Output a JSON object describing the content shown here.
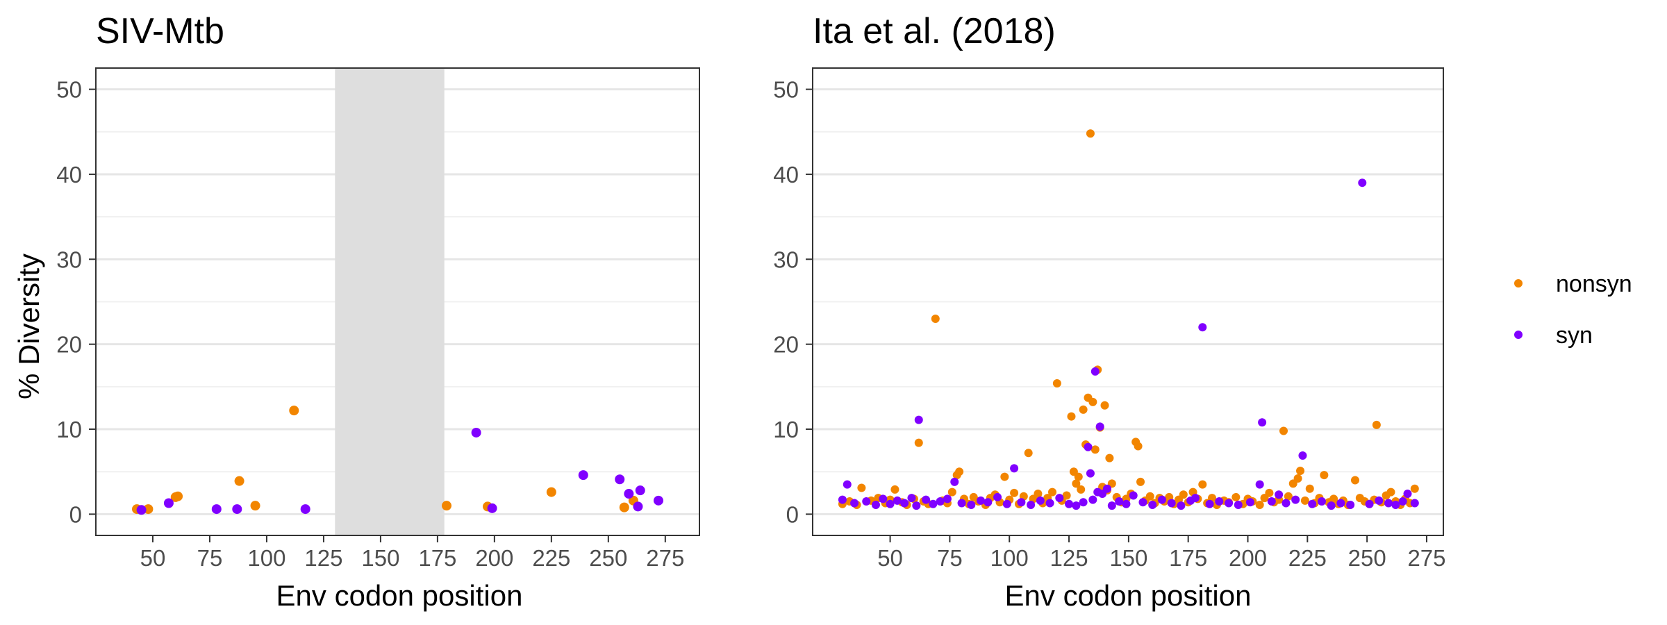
{
  "chart_data": [
    {
      "type": "scatter",
      "title": "SIV-Mtb",
      "xlabel": "Env codon position",
      "ylabel": "% Diversity",
      "xlim": [
        25,
        290
      ],
      "ylim": [
        -2.5,
        52.5
      ],
      "xticks": [
        50,
        75,
        100,
        125,
        150,
        175,
        200,
        225,
        250,
        275
      ],
      "yticks": [
        0,
        10,
        20,
        30,
        40,
        50
      ],
      "grid": true,
      "shaded_region": [
        130,
        178
      ],
      "series": [
        {
          "name": "nonsyn",
          "color": "#F28500",
          "points": [
            [
              43,
              0.6
            ],
            [
              48,
              0.6
            ],
            [
              60,
              2.0
            ],
            [
              61,
              2.1
            ],
            [
              88,
              3.9
            ],
            [
              95,
              1.0
            ],
            [
              112,
              12.2
            ],
            [
              179,
              1.0
            ],
            [
              197,
              0.9
            ],
            [
              225,
              2.6
            ],
            [
              257,
              0.8
            ],
            [
              261,
              1.6
            ]
          ]
        },
        {
          "name": "syn",
          "color": "#8000FF",
          "points": [
            [
              45,
              0.5
            ],
            [
              57,
              1.3
            ],
            [
              78,
              0.6
            ],
            [
              87,
              0.6
            ],
            [
              117,
              0.6
            ],
            [
              192,
              9.6
            ],
            [
              199,
              0.7
            ],
            [
              239,
              4.6
            ],
            [
              255,
              4.1
            ],
            [
              259,
              2.4
            ],
            [
              263,
              0.9
            ],
            [
              264,
              2.8
            ],
            [
              272,
              1.6
            ]
          ]
        }
      ]
    },
    {
      "type": "scatter",
      "title": "Ita et al. (2018)",
      "xlabel": "Env codon position",
      "ylabel": "",
      "xlim": [
        17.5,
        282
      ],
      "ylim": [
        -2.5,
        52.5
      ],
      "xticks": [
        50,
        75,
        100,
        125,
        150,
        175,
        200,
        225,
        250,
        275
      ],
      "yticks": [
        0,
        10,
        20,
        30,
        40,
        50
      ],
      "grid": true,
      "legend": "right",
      "series": [
        {
          "name": "nonsyn",
          "color": "#F28500",
          "points": [
            [
              30,
              1.2
            ],
            [
              33,
              1.5
            ],
            [
              36,
              1.1
            ],
            [
              38,
              3.1
            ],
            [
              42,
              1.6
            ],
            [
              45,
              1.9
            ],
            [
              48,
              1.3
            ],
            [
              50,
              1.7
            ],
            [
              52,
              2.9
            ],
            [
              55,
              1.4
            ],
            [
              57,
              1.1
            ],
            [
              60,
              1.8
            ],
            [
              62,
              8.4
            ],
            [
              64,
              1.5
            ],
            [
              66,
              1.2
            ],
            [
              69,
              23.0
            ],
            [
              72,
              1.6
            ],
            [
              74,
              1.3
            ],
            [
              76,
              2.6
            ],
            [
              78,
              4.6
            ],
            [
              79,
              5.0
            ],
            [
              81,
              1.8
            ],
            [
              83,
              1.2
            ],
            [
              85,
              2.0
            ],
            [
              87,
              1.5
            ],
            [
              90,
              1.1
            ],
            [
              92,
              1.9
            ],
            [
              94,
              2.3
            ],
            [
              96,
              1.4
            ],
            [
              98,
              4.4
            ],
            [
              100,
              1.7
            ],
            [
              102,
              2.5
            ],
            [
              104,
              1.2
            ],
            [
              106,
              2.1
            ],
            [
              108,
              7.2
            ],
            [
              110,
              1.8
            ],
            [
              112,
              2.4
            ],
            [
              114,
              1.3
            ],
            [
              116,
              1.9
            ],
            [
              118,
              2.6
            ],
            [
              120,
              15.4
            ],
            [
              122,
              1.6
            ],
            [
              124,
              2.2
            ],
            [
              126,
              11.5
            ],
            [
              127,
              5.0
            ],
            [
              128,
              3.6
            ],
            [
              129,
              4.4
            ],
            [
              130,
              2.9
            ],
            [
              131,
              12.3
            ],
            [
              132,
              8.2
            ],
            [
              133,
              13.7
            ],
            [
              134,
              44.8
            ],
            [
              135,
              13.2
            ],
            [
              136,
              7.6
            ],
            [
              137,
              17.0
            ],
            [
              138,
              10.2
            ],
            [
              139,
              3.2
            ],
            [
              140,
              12.8
            ],
            [
              141,
              2.8
            ],
            [
              142,
              6.6
            ],
            [
              143,
              3.6
            ],
            [
              145,
              2.0
            ],
            [
              147,
              1.4
            ],
            [
              149,
              1.8
            ],
            [
              151,
              2.4
            ],
            [
              153,
              8.5
            ],
            [
              154,
              8.0
            ],
            [
              155,
              3.8
            ],
            [
              157,
              1.6
            ],
            [
              159,
              2.1
            ],
            [
              161,
              1.3
            ],
            [
              163,
              1.9
            ],
            [
              165,
              1.5
            ],
            [
              167,
              2.0
            ],
            [
              169,
              1.2
            ],
            [
              171,
              1.7
            ],
            [
              173,
              2.3
            ],
            [
              175,
              1.4
            ],
            [
              177,
              2.6
            ],
            [
              179,
              1.8
            ],
            [
              181,
              3.5
            ],
            [
              183,
              1.3
            ],
            [
              185,
              1.9
            ],
            [
              187,
              1.1
            ],
            [
              190,
              1.6
            ],
            [
              192,
              1.4
            ],
            [
              195,
              2.0
            ],
            [
              198,
              1.2
            ],
            [
              200,
              1.8
            ],
            [
              202,
              1.5
            ],
            [
              205,
              1.1
            ],
            [
              207,
              1.9
            ],
            [
              209,
              2.5
            ],
            [
              211,
              1.4
            ],
            [
              213,
              1.7
            ],
            [
              215,
              9.8
            ],
            [
              217,
              2.1
            ],
            [
              219,
              3.6
            ],
            [
              221,
              4.2
            ],
            [
              222,
              5.1
            ],
            [
              224,
              1.6
            ],
            [
              226,
              3.0
            ],
            [
              228,
              1.3
            ],
            [
              230,
              1.9
            ],
            [
              232,
              4.6
            ],
            [
              234,
              1.4
            ],
            [
              236,
              1.8
            ],
            [
              238,
              1.2
            ],
            [
              240,
              1.6
            ],
            [
              242,
              1.1
            ],
            [
              245,
              4.0
            ],
            [
              247,
              1.9
            ],
            [
              249,
              1.5
            ],
            [
              251,
              1.2
            ],
            [
              253,
              1.7
            ],
            [
              254,
              10.5
            ],
            [
              256,
              1.4
            ],
            [
              258,
              2.2
            ],
            [
              260,
              2.6
            ],
            [
              262,
              1.5
            ],
            [
              264,
              1.1
            ],
            [
              266,
              1.8
            ],
            [
              268,
              1.3
            ],
            [
              270,
              3.0
            ]
          ]
        },
        {
          "name": "syn",
          "color": "#8000FF",
          "points": [
            [
              30,
              1.7
            ],
            [
              32,
              3.5
            ],
            [
              35,
              1.3
            ],
            [
              40,
              1.5
            ],
            [
              44,
              1.1
            ],
            [
              47,
              1.8
            ],
            [
              50,
              1.2
            ],
            [
              53,
              1.6
            ],
            [
              56,
              1.3
            ],
            [
              59,
              1.9
            ],
            [
              61,
              1.0
            ],
            [
              62,
              11.1
            ],
            [
              65,
              1.7
            ],
            [
              68,
              1.2
            ],
            [
              71,
              1.5
            ],
            [
              74,
              1.8
            ],
            [
              77,
              3.8
            ],
            [
              80,
              1.3
            ],
            [
              84,
              1.1
            ],
            [
              88,
              1.6
            ],
            [
              91,
              1.4
            ],
            [
              95,
              2.0
            ],
            [
              99,
              1.2
            ],
            [
              102,
              5.4
            ],
            [
              105,
              1.4
            ],
            [
              109,
              1.1
            ],
            [
              113,
              1.6
            ],
            [
              117,
              1.3
            ],
            [
              121,
              1.9
            ],
            [
              125,
              1.2
            ],
            [
              128,
              1.0
            ],
            [
              131,
              1.4
            ],
            [
              133,
              7.9
            ],
            [
              134,
              4.8
            ],
            [
              135,
              1.7
            ],
            [
              136,
              16.8
            ],
            [
              137,
              2.6
            ],
            [
              138,
              10.3
            ],
            [
              139,
              2.4
            ],
            [
              141,
              3.0
            ],
            [
              143,
              1.0
            ],
            [
              146,
              1.5
            ],
            [
              149,
              1.2
            ],
            [
              152,
              2.2
            ],
            [
              156,
              1.4
            ],
            [
              160,
              1.1
            ],
            [
              164,
              1.7
            ],
            [
              168,
              1.3
            ],
            [
              172,
              1.0
            ],
            [
              176,
              1.6
            ],
            [
              178,
              1.9
            ],
            [
              181,
              22.0
            ],
            [
              184,
              1.2
            ],
            [
              188,
              1.5
            ],
            [
              192,
              1.3
            ],
            [
              196,
              1.1
            ],
            [
              201,
              1.4
            ],
            [
              205,
              3.5
            ],
            [
              206,
              10.8
            ],
            [
              210,
              1.5
            ],
            [
              213,
              2.3
            ],
            [
              216,
              1.3
            ],
            [
              220,
              1.7
            ],
            [
              223,
              6.9
            ],
            [
              227,
              1.2
            ],
            [
              231,
              1.5
            ],
            [
              235,
              1.0
            ],
            [
              239,
              1.3
            ],
            [
              243,
              1.1
            ],
            [
              248,
              39.0
            ],
            [
              251,
              1.2
            ],
            [
              255,
              1.6
            ],
            [
              259,
              1.3
            ],
            [
              262,
              1.1
            ],
            [
              265,
              1.5
            ],
            [
              267,
              2.4
            ],
            [
              270,
              1.3
            ]
          ]
        }
      ]
    }
  ]
}
